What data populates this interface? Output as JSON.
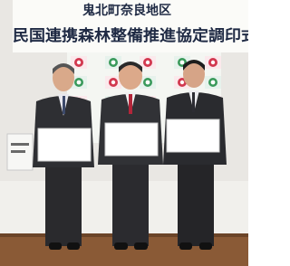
{
  "banner": {
    "line1": "鬼北町奈良地区",
    "line2": "民国連携森林整備推進協定調印式"
  }
}
